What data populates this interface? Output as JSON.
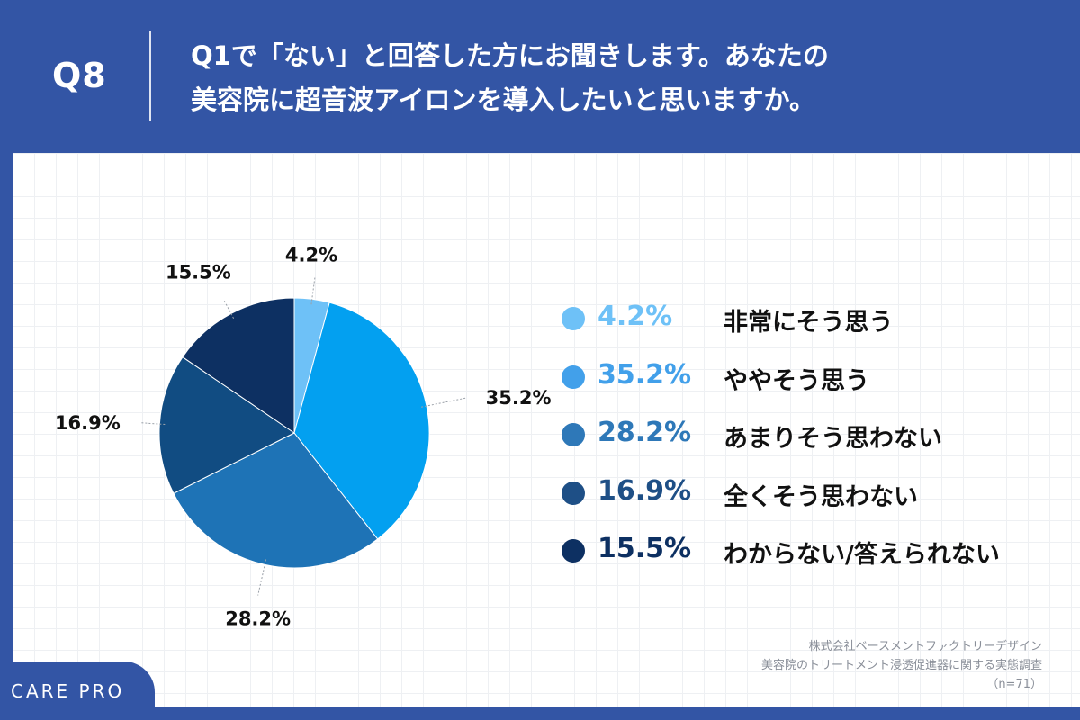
{
  "header": {
    "question_number": "Q8",
    "question_line1": "Q1で「ない」と回答した方にお聞きします。あなたの",
    "question_line2": "美容院に超音波アイロンを導入したいと思いますか。"
  },
  "chart_data": {
    "type": "pie",
    "title": "Q1で「ない」と回答した方にお聞きします。あなたの美容院に超音波アイロンを導入したいと思いますか。",
    "unit": "%",
    "start_angle": "12 o'clock, clockwise",
    "slices": [
      {
        "label": "非常にそう思う",
        "value": 4.2,
        "display": "4.2%",
        "color": "#6ec1f7"
      },
      {
        "label": "ややそう思う",
        "value": 35.2,
        "display": "35.2%",
        "color": "#03a0f0"
      },
      {
        "label": "あまりそう思わない",
        "value": 28.2,
        "display": "28.2%",
        "color": "#1e73b6"
      },
      {
        "label": "全くそう思わない",
        "value": 16.9,
        "display": "16.9%",
        "color": "#114c82"
      },
      {
        "label": "わからない/答えられない",
        "value": 15.5,
        "display": "15.5%",
        "color": "#0d3062"
      }
    ],
    "legend": [
      {
        "display": "4.2%",
        "label": "非常にそう思う",
        "color": "#6ec1f7"
      },
      {
        "display": "35.2%",
        "label": "ややそう思う",
        "color": "#42a0ea"
      },
      {
        "display": "28.2%",
        "label": "あまりそう思わない",
        "color": "#2e78b8"
      },
      {
        "display": "16.9%",
        "label": "全くそう思わない",
        "color": "#1e4f86"
      },
      {
        "display": "15.5%",
        "label": "わからない/答えられない",
        "color": "#0d3062"
      }
    ]
  },
  "source": {
    "line1": "株式会社ベースメントファクトリーデザイン",
    "line2": "美容院のトリートメント浸透促進器に関する実態調査",
    "line3": "（n=71）"
  },
  "brand": {
    "name": "CARE PRO"
  },
  "colors": {
    "header_bg": "#3355a5",
    "panel_bg": "#ffffff",
    "text": "#111111"
  }
}
